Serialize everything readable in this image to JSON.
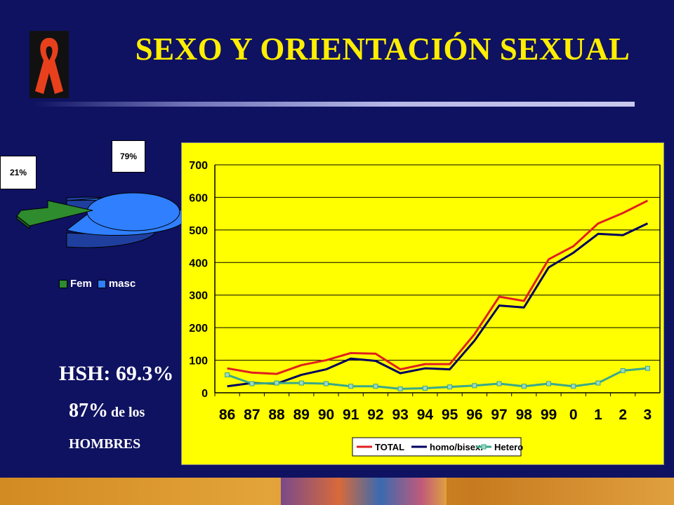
{
  "title": "SEXO Y ORIENTACIÓN SEXUAL",
  "icons": {
    "ribbon": "aids-ribbon-icon"
  },
  "colors": {
    "background": "#0f1261",
    "title": "#ffee00",
    "chart_panel": "#ffff00",
    "total": "#e02020",
    "homo": "#000060",
    "hetero": "#3aa88a",
    "pie_fem": "#2e8b2e",
    "pie_masc": "#2f7fff"
  },
  "stats": {
    "hsh": "HSH: 69.3%",
    "pct": "87%",
    "de_los": "de los",
    "hombres": "HOMBRES"
  },
  "chart_data": [
    {
      "type": "pie",
      "slices": [
        {
          "name": "Fem",
          "value": 21,
          "label": "21%"
        },
        {
          "name": "masc",
          "value": 79,
          "label": "79%"
        }
      ],
      "legend": [
        "Fem",
        "masc"
      ],
      "legend_position": "bottom"
    },
    {
      "type": "line",
      "categories": [
        "86",
        "87",
        "88",
        "89",
        "90",
        "91",
        "92",
        "93",
        "94",
        "95",
        "96",
        "97",
        "98",
        "99",
        "0",
        "1",
        "2",
        "3"
      ],
      "series": [
        {
          "name": "TOTAL",
          "values": [
            75,
            62,
            58,
            85,
            100,
            122,
            120,
            72,
            88,
            88,
            180,
            295,
            282,
            410,
            450,
            520,
            552,
            590
          ]
        },
        {
          "name": "homo/bisex.",
          "values": [
            20,
            30,
            28,
            55,
            72,
            105,
            98,
            60,
            75,
            72,
            160,
            268,
            262,
            385,
            430,
            488,
            484,
            520
          ]
        },
        {
          "name": "Hetero",
          "values": [
            55,
            28,
            30,
            30,
            28,
            20,
            20,
            12,
            14,
            18,
            22,
            28,
            20,
            28,
            20,
            30,
            68,
            75
          ]
        }
      ],
      "ylim": [
        0,
        700
      ],
      "yticks": [
        0,
        100,
        200,
        300,
        400,
        500,
        600,
        700
      ],
      "grid": true,
      "legend_position": "bottom"
    }
  ]
}
